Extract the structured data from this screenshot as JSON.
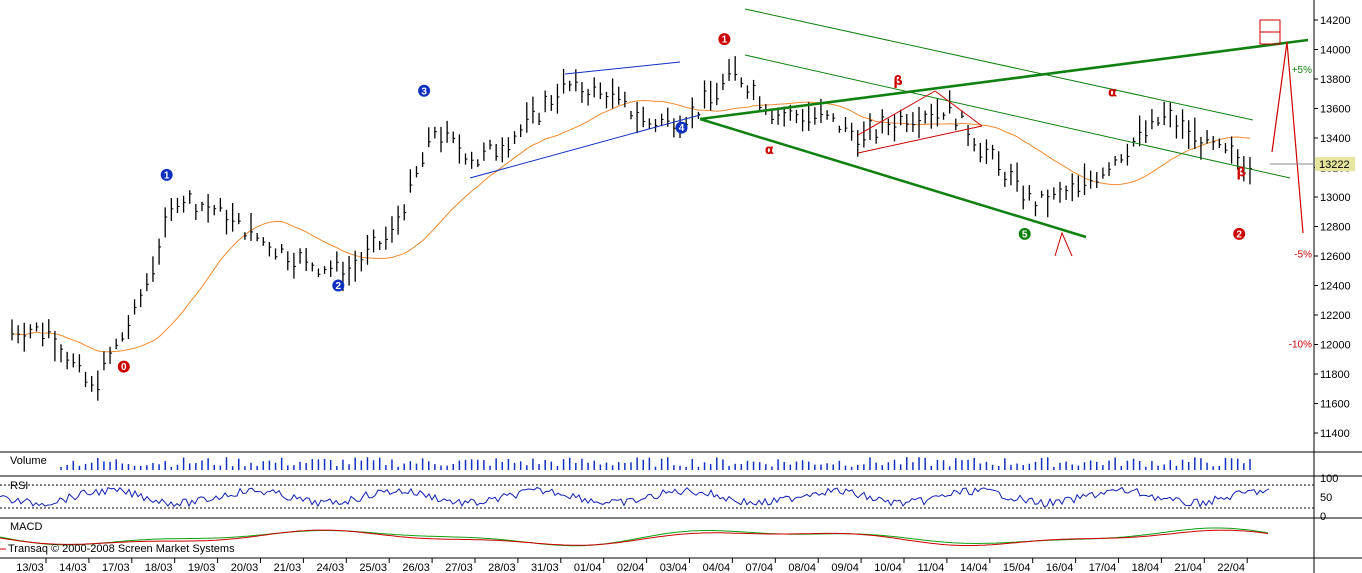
{
  "chart_data": {
    "type": "bar",
    "price_axis": {
      "ticks": [
        "14200",
        "14000",
        "13800",
        "13600",
        "13400",
        "13200",
        "13000",
        "12800",
        "12600",
        "12400",
        "12200",
        "12000",
        "11800",
        "11600",
        "11400"
      ],
      "ylim": [
        11300,
        14300
      ]
    },
    "last_price": "13222",
    "x_dates": [
      "13/03",
      "14/03",
      "17/03",
      "18/03",
      "19/03",
      "20/03",
      "21/03",
      "24/03",
      "25/03",
      "26/03",
      "27/03",
      "28/03",
      "31/03",
      "01/04",
      "02/04",
      "03/04",
      "04/04",
      "07/04",
      "08/04",
      "09/04",
      "10/04",
      "11/04",
      "14/04",
      "15/04",
      "16/04",
      "17/04",
      "18/04",
      "21/04",
      "22/04"
    ],
    "daily_close": [
      12100,
      11700,
      12200,
      13000,
      12900,
      12700,
      12550,
      12500,
      12750,
      13450,
      13250,
      13450,
      13750,
      13700,
      13500,
      13550,
      13850,
      13550,
      13550,
      13400,
      13550,
      13600,
      13250,
      12950,
      13050,
      13300,
      13550,
      13350,
      13222
    ],
    "wave_labels": [
      {
        "text": "0",
        "color": "#cc0000",
        "x_date": "17/03",
        "price": 11850
      },
      {
        "text": "1",
        "color": "#1030c0",
        "x_date": "18/03",
        "price": 13150
      },
      {
        "text": "2",
        "color": "#1030c0",
        "x_date": "24/03",
        "price": 12400
      },
      {
        "text": "3",
        "color": "#1030c0",
        "x_date": "26/03",
        "price": 13720
      },
      {
        "text": "4",
        "color": "#1030c0",
        "x_date": "03/04",
        "price": 13470
      },
      {
        "text": "1",
        "color": "#cc0000",
        "x_date": "04/04",
        "price": 14070
      },
      {
        "text": "5",
        "color": "#108010",
        "x_date": "15/04",
        "price": 12750
      },
      {
        "text": "2",
        "color": "#cc0000",
        "x_date": "22/04",
        "price": 12750
      }
    ],
    "greek_labels": [
      {
        "text": "α",
        "x_date": "07/04",
        "price": 13290
      },
      {
        "text": "β",
        "x_date": "10/04",
        "price": 13760
      },
      {
        "text": "α",
        "x_date": "17/04",
        "price": 13680
      },
      {
        "text": "β",
        "x_date": "22/04",
        "price": 13140
      }
    ],
    "pct_labels": [
      {
        "text": "+5%",
        "color": "#108010",
        "price": 13840
      },
      {
        "text": "-5%",
        "color": "#cc0000",
        "price": 12590
      },
      {
        "text": "-10%",
        "color": "#cc0000",
        "price": 11980
      }
    ],
    "panels": {
      "volume": {
        "title": "Volume"
      },
      "rsi": {
        "title": "RSI",
        "ticks": [
          "100",
          "50",
          "0"
        ]
      },
      "macd": {
        "title": "MACD"
      }
    }
  },
  "copyright": "Transaq © 2000-2008 Screen Market Systems",
  "colors": {
    "bars": "#000000",
    "ma": "#f08a30",
    "green": "#108010",
    "blue": "#1030c0",
    "red": "#cc0000",
    "rsi": "#1020b0",
    "macd_red": "#cc0000",
    "macd_green": "#10a010",
    "last_bg": "#e6e6a0"
  }
}
